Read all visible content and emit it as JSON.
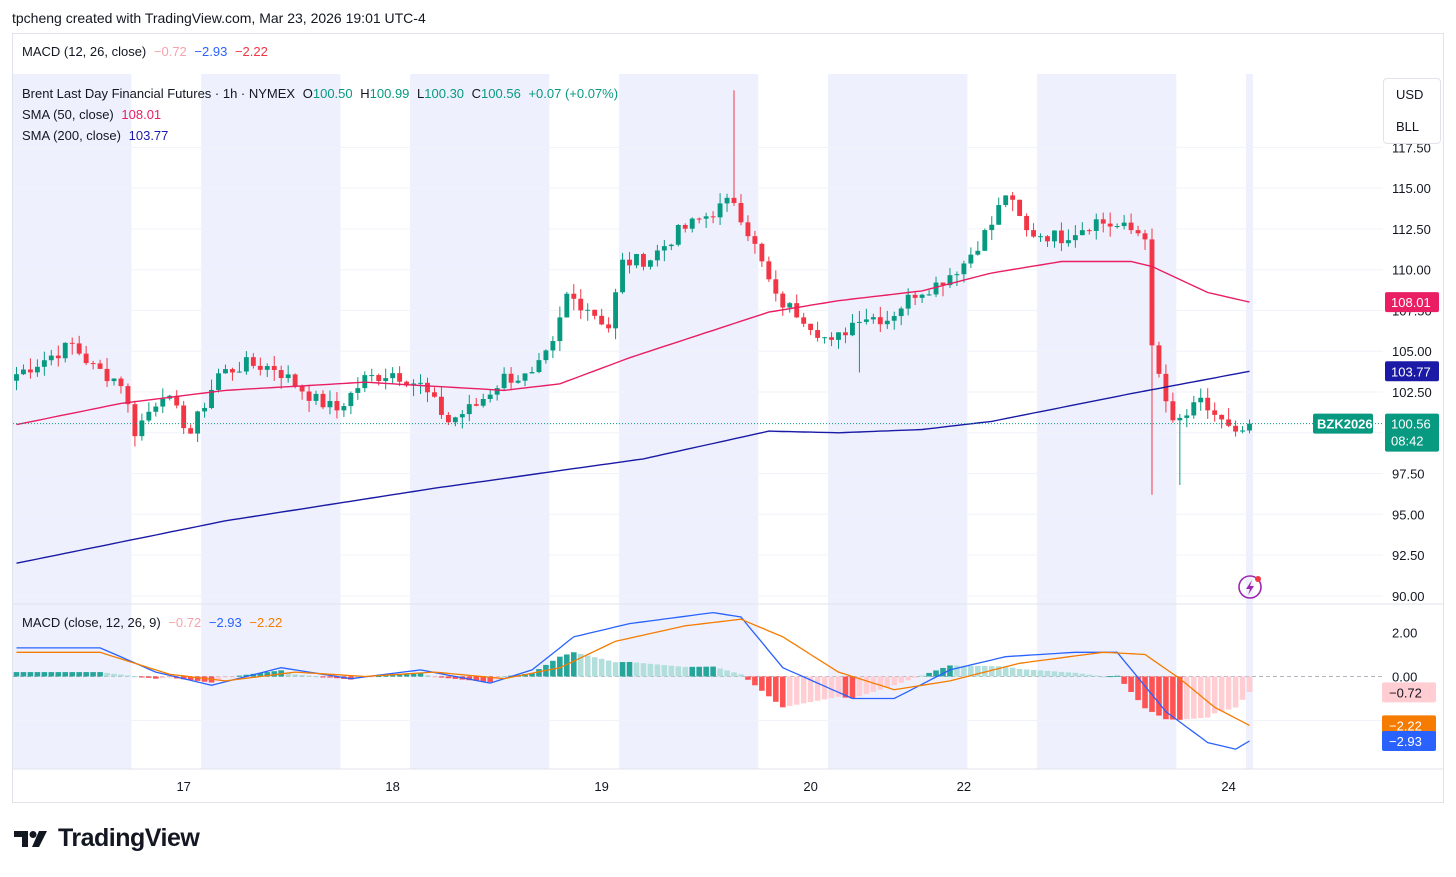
{
  "header": {
    "credit": "tpcheng created with TradingView.com, Mar 23, 2026 19:01 UTC-4"
  },
  "top_macd_legend": {
    "label": "MACD (12, 26, close)",
    "hist": "−0.72",
    "macd": "−2.93",
    "signal": "−2.22"
  },
  "main_legend": {
    "symbol": "Brent Last Day Financial Futures · 1h · NYMEX",
    "o_label": "O",
    "o": "100.50",
    "h_label": "H",
    "h": "100.99",
    "l_label": "L",
    "l": "100.30",
    "c_label": "C",
    "c": "100.56",
    "change": "+0.07 (+0.07%)",
    "sma50_label": "SMA (50, close)",
    "sma50": "108.01",
    "sma200_label": "SMA (200, close)",
    "sma200": "103.77"
  },
  "scale_buttons": {
    "currency": "USD",
    "unit": "BLL"
  },
  "macd_legend": {
    "label": "MACD (close, 12, 26, 9)",
    "hist": "−0.72",
    "macd": "−2.93",
    "signal": "−2.22"
  },
  "price_tag": {
    "ticker": "BZK2026",
    "price": "100.56",
    "countdown": "08:42",
    "sma50_tag": "108.01",
    "sma200_tag": "103.77"
  },
  "macd_tags": {
    "hist": "−0.72",
    "signal": "−2.22",
    "macd": "−2.93"
  },
  "footer": {
    "brand": "TradingView"
  },
  "colors": {
    "up": "#089981",
    "down": "#f23645",
    "sma50": "#e91e63",
    "sma200": "#1a1aa6",
    "macd": "#2962ff",
    "signal": "#f57c00",
    "session_band": "#eef1fd"
  },
  "chart_data": {
    "type": "candlestick",
    "title": "Brent Last Day Financial Futures · 1h · NYMEX",
    "price_axis_ticks": [
      "117.50",
      "115.00",
      "112.50",
      "110.00",
      "107.50",
      "105.00",
      "102.50",
      "100.00",
      "97.50",
      "95.00",
      "92.50",
      "90.00"
    ],
    "price_range": [
      89.5,
      122.0
    ],
    "x_tick_labels": [
      "17",
      "18",
      "19",
      "20",
      "22",
      "24"
    ],
    "x_tick_index": [
      24,
      54,
      84,
      114,
      136,
      174
    ],
    "bar_count": 178,
    "ohlc_anchors": [
      [
        0,
        103.6
      ],
      [
        4,
        104.5
      ],
      [
        8,
        105.4
      ],
      [
        11,
        104.0
      ],
      [
        15,
        103.1
      ],
      [
        17,
        100.1
      ],
      [
        21,
        102.5
      ],
      [
        25,
        100.0
      ],
      [
        29,
        103.6
      ],
      [
        33,
        104.2
      ],
      [
        37,
        104.0
      ],
      [
        40,
        103.0
      ],
      [
        43,
        102.0
      ],
      [
        46,
        101.4
      ],
      [
        50,
        103.3
      ],
      [
        54,
        103.7
      ],
      [
        58,
        102.9
      ],
      [
        62,
        100.7
      ],
      [
        66,
        101.7
      ],
      [
        70,
        103.4
      ],
      [
        74,
        103.4
      ],
      [
        77,
        105.3
      ],
      [
        79,
        108.4
      ],
      [
        82,
        107.7
      ],
      [
        85,
        106.5
      ],
      [
        87,
        110.4
      ],
      [
        91,
        110.7
      ],
      [
        95,
        112.3
      ],
      [
        99,
        113.3
      ],
      [
        103,
        114.3
      ],
      [
        106,
        111.4
      ],
      [
        109,
        108.2
      ],
      [
        113,
        107.1
      ],
      [
        117,
        105.4
      ],
      [
        121,
        107.2
      ],
      [
        125,
        107.0
      ],
      [
        129,
        108.6
      ],
      [
        132,
        109.1
      ],
      [
        136,
        110.4
      ],
      [
        140,
        112.8
      ],
      [
        142,
        114.7
      ],
      [
        145,
        112.3
      ],
      [
        150,
        112.0
      ],
      [
        155,
        113.0
      ],
      [
        160,
        112.4
      ],
      [
        162,
        112.2
      ],
      [
        163,
        105.0
      ],
      [
        166,
        100.4
      ],
      [
        170,
        101.8
      ],
      [
        172,
        101.1
      ],
      [
        175,
        99.7
      ],
      [
        177,
        100.5
      ]
    ],
    "sma50_anchors": [
      [
        0,
        100.5
      ],
      [
        15,
        101.8
      ],
      [
        30,
        102.6
      ],
      [
        50,
        103.1
      ],
      [
        70,
        102.6
      ],
      [
        78,
        103.0
      ],
      [
        88,
        104.6
      ],
      [
        98,
        106.0
      ],
      [
        108,
        107.4
      ],
      [
        118,
        108.1
      ],
      [
        130,
        108.7
      ],
      [
        140,
        109.8
      ],
      [
        150,
        110.5
      ],
      [
        160,
        110.5
      ],
      [
        163,
        110.2
      ],
      [
        166,
        109.6
      ],
      [
        171,
        108.6
      ],
      [
        177,
        108.01
      ]
    ],
    "sma200_anchors": [
      [
        0,
        92.0
      ],
      [
        30,
        94.6
      ],
      [
        60,
        96.6
      ],
      [
        90,
        98.4
      ],
      [
        108,
        100.1
      ],
      [
        118,
        100.0
      ],
      [
        130,
        100.2
      ],
      [
        140,
        100.7
      ],
      [
        160,
        102.4
      ],
      [
        177,
        103.77
      ]
    ],
    "macd_axis_ticks": [
      "2.00",
      "0.00"
    ],
    "macd_range": [
      -4.2,
      3.2
    ],
    "macd_line_anchors": [
      [
        0,
        1.3
      ],
      [
        12,
        1.3
      ],
      [
        20,
        0.2
      ],
      [
        28,
        -0.4
      ],
      [
        38,
        0.4
      ],
      [
        48,
        -0.1
      ],
      [
        58,
        0.3
      ],
      [
        68,
        -0.3
      ],
      [
        74,
        0.3
      ],
      [
        80,
        1.8
      ],
      [
        88,
        2.4
      ],
      [
        100,
        2.9
      ],
      [
        104,
        2.7
      ],
      [
        110,
        0.4
      ],
      [
        120,
        -1.0
      ],
      [
        126,
        -1.0
      ],
      [
        134,
        0.3
      ],
      [
        142,
        0.9
      ],
      [
        152,
        1.1
      ],
      [
        158,
        1.1
      ],
      [
        165,
        -1.6
      ],
      [
        171,
        -3.0
      ],
      [
        175,
        -3.3
      ],
      [
        177,
        -2.93
      ]
    ],
    "signal_line_anchors": [
      [
        0,
        1.1
      ],
      [
        12,
        1.1
      ],
      [
        22,
        0.1
      ],
      [
        30,
        -0.2
      ],
      [
        40,
        0.2
      ],
      [
        50,
        0.0
      ],
      [
        60,
        0.2
      ],
      [
        70,
        -0.1
      ],
      [
        78,
        0.4
      ],
      [
        86,
        1.6
      ],
      [
        96,
        2.3
      ],
      [
        104,
        2.6
      ],
      [
        110,
        1.8
      ],
      [
        118,
        0.2
      ],
      [
        126,
        -0.6
      ],
      [
        134,
        -0.2
      ],
      [
        144,
        0.6
      ],
      [
        156,
        1.1
      ],
      [
        162,
        1.0
      ],
      [
        167,
        -0.1
      ],
      [
        172,
        -1.4
      ],
      [
        177,
        -2.22
      ]
    ],
    "session_bands": [
      [
        0,
        17
      ],
      [
        27,
        47
      ],
      [
        57,
        77
      ],
      [
        87,
        107
      ],
      [
        117,
        137
      ],
      [
        147,
        167
      ],
      [
        177,
        178
      ]
    ]
  }
}
